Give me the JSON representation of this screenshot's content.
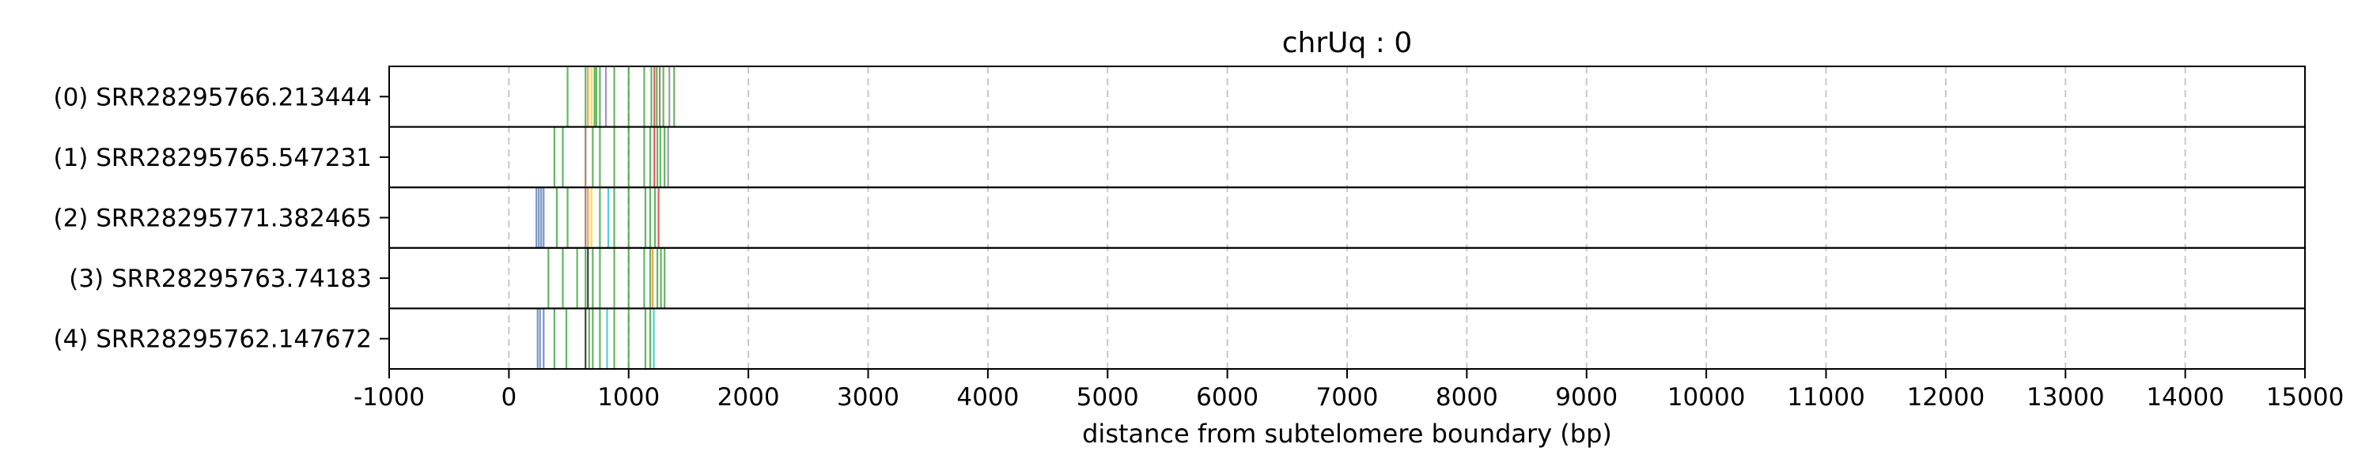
{
  "chart_data": {
    "type": "event-track",
    "title": "chrUq : 0",
    "xlabel": "distance from subtelomere boundary (bp)",
    "ylabel": "",
    "xlim": [
      -1000,
      15000
    ],
    "x_ticks": [
      -1000,
      0,
      1000,
      2000,
      3000,
      4000,
      5000,
      6000,
      7000,
      8000,
      9000,
      10000,
      11000,
      12000,
      13000,
      14000,
      15000
    ],
    "grid": "vertical dashed at x ticks",
    "legend": "none",
    "tracks": [
      {
        "label": "(0) SRR28295766.213444",
        "marks": [
          {
            "x": 490,
            "color": "#2ca02c"
          },
          {
            "x": 640,
            "color": "#2ca02c"
          },
          {
            "x": 660,
            "color": "#ff7f0e"
          },
          {
            "x": 690,
            "color": "#ffd700"
          },
          {
            "x": 715,
            "color": "#2ca02c"
          },
          {
            "x": 730,
            "color": "#2ca02c"
          },
          {
            "x": 760,
            "color": "#2ca02c"
          },
          {
            "x": 810,
            "color": "#9467bd"
          },
          {
            "x": 880,
            "color": "#2ca02c"
          },
          {
            "x": 1000,
            "color": "#2ca02c"
          },
          {
            "x": 1130,
            "color": "#2ca02c"
          },
          {
            "x": 1190,
            "color": "#2ca02c"
          },
          {
            "x": 1215,
            "color": "#d62728"
          },
          {
            "x": 1235,
            "color": "#2ca02c"
          },
          {
            "x": 1260,
            "color": "#8c564b"
          },
          {
            "x": 1290,
            "color": "#2ca02c"
          },
          {
            "x": 1340,
            "color": "#7f7f7f"
          },
          {
            "x": 1380,
            "color": "#2ca02c"
          }
        ]
      },
      {
        "label": "(1) SRR28295765.547231",
        "marks": [
          {
            "x": 380,
            "color": "#2ca02c"
          },
          {
            "x": 450,
            "color": "#2ca02c"
          },
          {
            "x": 640,
            "color": "#8c564b"
          },
          {
            "x": 700,
            "color": "#2ca02c"
          },
          {
            "x": 760,
            "color": "#2ca02c"
          },
          {
            "x": 880,
            "color": "#2ca02c"
          },
          {
            "x": 1000,
            "color": "#2ca02c"
          },
          {
            "x": 1130,
            "color": "#2ca02c"
          },
          {
            "x": 1180,
            "color": "#2ca02c"
          },
          {
            "x": 1215,
            "color": "#d62728"
          },
          {
            "x": 1240,
            "color": "#2ca02c"
          },
          {
            "x": 1265,
            "color": "#2ca02c"
          },
          {
            "x": 1300,
            "color": "#2ca02c"
          },
          {
            "x": 1330,
            "color": "#7f7f7f"
          }
        ]
      },
      {
        "label": "(2) SRR28295771.382465",
        "marks": [
          {
            "x": 230,
            "color": "#4c72b0"
          },
          {
            "x": 250,
            "color": "#4c72b0"
          },
          {
            "x": 270,
            "color": "#4c72b0"
          },
          {
            "x": 290,
            "color": "#4c72b0"
          },
          {
            "x": 400,
            "color": "#2ca02c"
          },
          {
            "x": 490,
            "color": "#2ca02c"
          },
          {
            "x": 640,
            "color": "#8c564b"
          },
          {
            "x": 660,
            "color": "#ff7f0e"
          },
          {
            "x": 690,
            "color": "#ffd700"
          },
          {
            "x": 760,
            "color": "#2ca02c"
          },
          {
            "x": 830,
            "color": "#17becf"
          },
          {
            "x": 880,
            "color": "#2ca02c"
          },
          {
            "x": 1000,
            "color": "#2ca02c"
          },
          {
            "x": 1140,
            "color": "#2ca02c"
          },
          {
            "x": 1180,
            "color": "#2ca02c"
          },
          {
            "x": 1220,
            "color": "#2ca02c"
          },
          {
            "x": 1250,
            "color": "#d62728"
          }
        ]
      },
      {
        "label": "(3) SRR28295763.74183",
        "marks": [
          {
            "x": 330,
            "color": "#2ca02c"
          },
          {
            "x": 450,
            "color": "#2ca02c"
          },
          {
            "x": 570,
            "color": "#2ca02c"
          },
          {
            "x": 640,
            "color": "#2ca02c"
          },
          {
            "x": 660,
            "color": "#000000"
          },
          {
            "x": 700,
            "color": "#2ca02c"
          },
          {
            "x": 760,
            "color": "#2ca02c"
          },
          {
            "x": 880,
            "color": "#2ca02c"
          },
          {
            "x": 1000,
            "color": "#2ca02c"
          },
          {
            "x": 1130,
            "color": "#2ca02c"
          },
          {
            "x": 1180,
            "color": "#2ca02c"
          },
          {
            "x": 1200,
            "color": "#ff7f0e"
          },
          {
            "x": 1240,
            "color": "#2ca02c"
          },
          {
            "x": 1270,
            "color": "#2ca02c"
          },
          {
            "x": 1300,
            "color": "#2ca02c"
          }
        ]
      },
      {
        "label": "(4) SRR28295762.147672",
        "marks": [
          {
            "x": 240,
            "color": "#4c72b0"
          },
          {
            "x": 260,
            "color": "#4c72b0"
          },
          {
            "x": 290,
            "color": "#4c72b0"
          },
          {
            "x": 380,
            "color": "#2ca02c"
          },
          {
            "x": 480,
            "color": "#2ca02c"
          },
          {
            "x": 640,
            "color": "#000000"
          },
          {
            "x": 670,
            "color": "#2ca02c"
          },
          {
            "x": 700,
            "color": "#2ca02c"
          },
          {
            "x": 760,
            "color": "#2ca02c"
          },
          {
            "x": 820,
            "color": "#17becf"
          },
          {
            "x": 880,
            "color": "#2ca02c"
          },
          {
            "x": 1000,
            "color": "#2ca02c"
          },
          {
            "x": 1140,
            "color": "#2ca02c"
          },
          {
            "x": 1180,
            "color": "#2ca02c"
          },
          {
            "x": 1210,
            "color": "#17becf"
          }
        ]
      }
    ]
  }
}
